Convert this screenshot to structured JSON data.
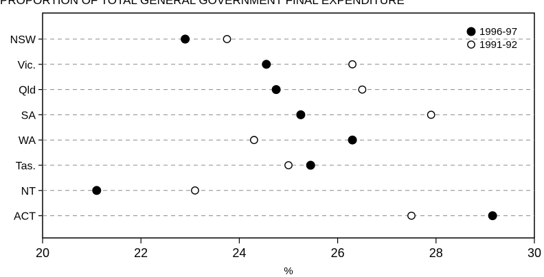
{
  "chart_data": {
    "type": "scatter",
    "title": "PROPORTION OF TOTAL GENERAL GOVERNMENT FINAL EXPENDITURE",
    "xlabel": "%",
    "ylabel": "",
    "xlim": [
      20,
      30
    ],
    "xticks": [
      20,
      22,
      24,
      26,
      28,
      30
    ],
    "categories": [
      "NSW",
      "Vic.",
      "Qld",
      "SA",
      "WA",
      "Tas.",
      "NT",
      "ACT"
    ],
    "series": [
      {
        "name": "1996-97",
        "marker": "filled",
        "values": [
          22.9,
          24.55,
          24.75,
          25.25,
          26.3,
          25.45,
          21.1,
          29.15
        ]
      },
      {
        "name": "1991-92",
        "marker": "open",
        "values": [
          23.75,
          26.3,
          26.5,
          27.9,
          24.3,
          25.0,
          23.1,
          27.5
        ]
      }
    ],
    "grid": "horizontal-dashed",
    "legend_position": "top-right"
  }
}
